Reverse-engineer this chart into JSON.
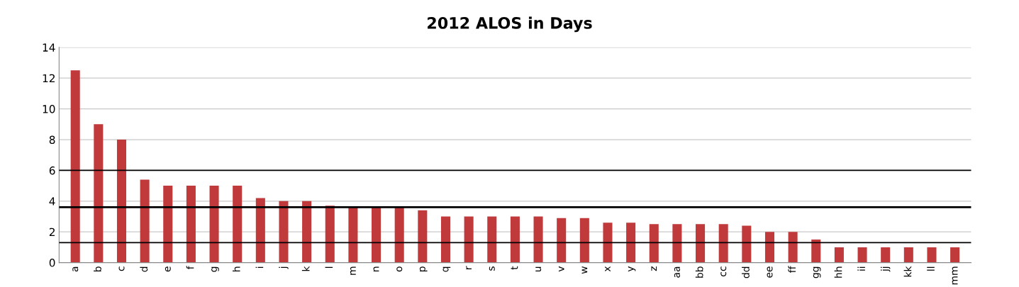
{
  "chart_data": {
    "type": "bar",
    "title": "2012 ALOS in Days",
    "categories": [
      "a",
      "b",
      "c",
      "d",
      "e",
      "f",
      "g",
      "h",
      "i",
      "j",
      "k",
      "l",
      "m",
      "n",
      "o",
      "p",
      "q",
      "r",
      "s",
      "t",
      "u",
      "v",
      "w",
      "x",
      "y",
      "z",
      "aa",
      "bb",
      "cc",
      "dd",
      "ee",
      "ff",
      "gg",
      "hh",
      "ii",
      "jj",
      "kk",
      "ll",
      "mm"
    ],
    "values": [
      12.5,
      9,
      8,
      5.4,
      5,
      5,
      5,
      5,
      4.2,
      4,
      4,
      3.7,
      3.6,
      3.6,
      3.6,
      3.4,
      3,
      3,
      3,
      3,
      3,
      2.9,
      2.9,
      2.6,
      2.6,
      2.5,
      2.5,
      2.5,
      2.5,
      2.4,
      2,
      2,
      1.5,
      1,
      1,
      1,
      1,
      1,
      1
    ],
    "color": "#c0393b",
    "ylim": [
      0,
      14
    ],
    "yticks": [
      0,
      2,
      4,
      6,
      8,
      10,
      12,
      14
    ],
    "grid": "y",
    "ref_lines": [
      {
        "axis": "y",
        "value": 6,
        "color": "#000000",
        "line_style": "solid"
      },
      {
        "axis": "y",
        "value": 3.6,
        "color": "#000000",
        "line_style": "solid"
      },
      {
        "axis": "y",
        "value": 1.3,
        "color": "#000000",
        "line_style": "solid"
      }
    ]
  }
}
